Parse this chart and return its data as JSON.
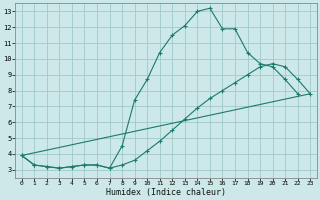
{
  "xlabel": "Humidex (Indice chaleur)",
  "bg_color": "#cce8e8",
  "grid_color": "#a0c8c8",
  "line_color": "#1a7a6e",
  "xlim": [
    -0.5,
    23.5
  ],
  "ylim": [
    2.5,
    13.5
  ],
  "xticks": [
    0,
    1,
    2,
    3,
    4,
    5,
    6,
    7,
    8,
    9,
    10,
    11,
    12,
    13,
    14,
    15,
    16,
    17,
    18,
    19,
    20,
    21,
    22,
    23
  ],
  "yticks": [
    3,
    4,
    5,
    6,
    7,
    8,
    9,
    10,
    11,
    12,
    13
  ],
  "line1_x": [
    0,
    1,
    2,
    3,
    4,
    5,
    6,
    7,
    8,
    9,
    10,
    11,
    12,
    13,
    14,
    15,
    16,
    17,
    18,
    19,
    20,
    21,
    22,
    23
  ],
  "line1_y": [
    3.9,
    3.3,
    3.2,
    3.1,
    3.2,
    3.3,
    3.3,
    3.1,
    4.5,
    7.4,
    8.7,
    10.4,
    11.5,
    12.1,
    13.0,
    13.2,
    11.9,
    11.9,
    10.4,
    9.7,
    9.5,
    8.7,
    7.8,
    null
  ],
  "line2_x": [
    0,
    1,
    2,
    3,
    4,
    5,
    6,
    7,
    8,
    9,
    10,
    11,
    12,
    13,
    14,
    15,
    16,
    17,
    18,
    19,
    20,
    21,
    22,
    23
  ],
  "line2_y": [
    3.9,
    3.3,
    3.2,
    3.1,
    3.2,
    3.3,
    3.3,
    3.1,
    3.3,
    3.6,
    4.2,
    4.8,
    5.5,
    6.2,
    6.9,
    7.5,
    8.0,
    8.5,
    9.0,
    9.5,
    9.7,
    9.5,
    8.7,
    7.8
  ],
  "line3_x": [
    0,
    23
  ],
  "line3_y": [
    3.9,
    7.8
  ]
}
